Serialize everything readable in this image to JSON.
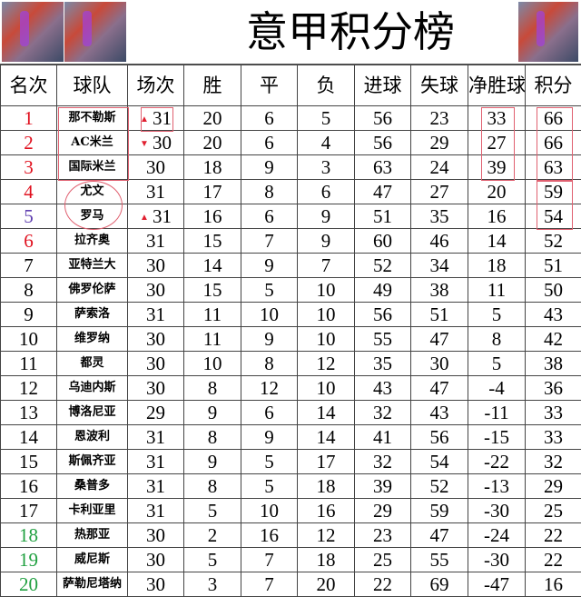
{
  "title": "意甲积分榜",
  "headers": [
    "名次",
    "球队",
    "场次",
    "胜",
    "平",
    "负",
    "进球",
    "失球",
    "净胜球",
    "积分"
  ],
  "rank_colors": {
    "red": "#e0101e",
    "purple": "#6040b0",
    "green": "#20a040",
    "black": "#000000"
  },
  "rows": [
    [
      "1",
      "那不勒斯",
      "31",
      "20",
      "6",
      "5",
      "56",
      "23",
      "33",
      "66"
    ],
    [
      "2",
      "AC米兰",
      "30",
      "20",
      "6",
      "4",
      "56",
      "29",
      "27",
      "66"
    ],
    [
      "3",
      "国际米兰",
      "30",
      "18",
      "9",
      "3",
      "63",
      "24",
      "39",
      "63"
    ],
    [
      "4",
      "尤文",
      "31",
      "17",
      "8",
      "6",
      "47",
      "27",
      "20",
      "59"
    ],
    [
      "5",
      "罗马",
      "31",
      "16",
      "6",
      "9",
      "51",
      "35",
      "16",
      "54"
    ],
    [
      "6",
      "拉齐奥",
      "31",
      "15",
      "7",
      "9",
      "60",
      "46",
      "14",
      "52"
    ],
    [
      "7",
      "亚特兰大",
      "30",
      "14",
      "9",
      "7",
      "52",
      "34",
      "18",
      "51"
    ],
    [
      "8",
      "佛罗伦萨",
      "30",
      "15",
      "5",
      "10",
      "49",
      "38",
      "11",
      "50"
    ],
    [
      "9",
      "萨索洛",
      "31",
      "11",
      "10",
      "10",
      "56",
      "51",
      "5",
      "43"
    ],
    [
      "10",
      "维罗纳",
      "30",
      "11",
      "9",
      "10",
      "55",
      "47",
      "8",
      "42"
    ],
    [
      "11",
      "都灵",
      "30",
      "10",
      "8",
      "12",
      "35",
      "30",
      "5",
      "38"
    ],
    [
      "12",
      "乌迪内斯",
      "30",
      "8",
      "12",
      "10",
      "43",
      "47",
      "-4",
      "36"
    ],
    [
      "13",
      "博洛尼亚",
      "29",
      "9",
      "6",
      "14",
      "32",
      "43",
      "-11",
      "33"
    ],
    [
      "14",
      "恩波利",
      "31",
      "8",
      "9",
      "14",
      "41",
      "56",
      "-15",
      "33"
    ],
    [
      "15",
      "斯佩齐亚",
      "31",
      "9",
      "5",
      "17",
      "32",
      "54",
      "-22",
      "32"
    ],
    [
      "16",
      "桑普多",
      "31",
      "8",
      "5",
      "18",
      "39",
      "52",
      "-13",
      "29"
    ],
    [
      "17",
      "卡利亚里",
      "31",
      "5",
      "10",
      "16",
      "29",
      "59",
      "-30",
      "25"
    ],
    [
      "18",
      "热那亚",
      "30",
      "2",
      "16",
      "12",
      "23",
      "47",
      "-24",
      "22"
    ],
    [
      "19",
      "威尼斯",
      "30",
      "5",
      "7",
      "18",
      "25",
      "55",
      "-30",
      "22"
    ],
    [
      "20",
      "萨勒尼塔纳",
      "30",
      "3",
      "7",
      "20",
      "22",
      "69",
      "-47",
      "16"
    ]
  ],
  "rank_color_by_row": [
    "red",
    "red",
    "red",
    "red",
    "purple",
    "red",
    "black",
    "black",
    "black",
    "black",
    "black",
    "black",
    "black",
    "black",
    "black",
    "black",
    "black",
    "green",
    "green",
    "green"
  ],
  "arrows": {
    "row1": "▲",
    "row2": "▼",
    "row5": "▲"
  }
}
